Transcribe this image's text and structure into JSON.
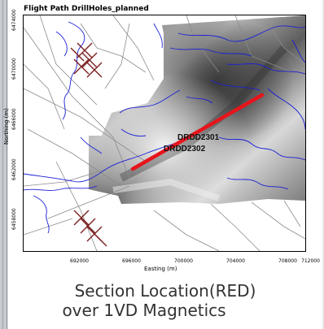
{
  "map": {
    "title": "Flight Path DrillHoles_planned",
    "x_axis_label": "Easting (m)",
    "y_axis_label": "Northing (m)",
    "x_ticks": [
      "692000",
      "696000",
      "700000",
      "704000",
      "708000",
      "712000"
    ],
    "y_ticks": [
      "6474000",
      "6470000",
      "6466000",
      "6462000",
      "6458000"
    ],
    "labels": {
      "hole1": "DRDD2301",
      "hole2": "DRDD2302"
    }
  },
  "colors": {
    "section_line": "#e8141c",
    "drainage": "#1a1fd6",
    "flight_path": "#8c8c8c",
    "drill_marks": "#7a1f1f"
  },
  "caption": {
    "line1": "Section Location(RED)",
    "line2": "over 1VD Magnetics"
  }
}
